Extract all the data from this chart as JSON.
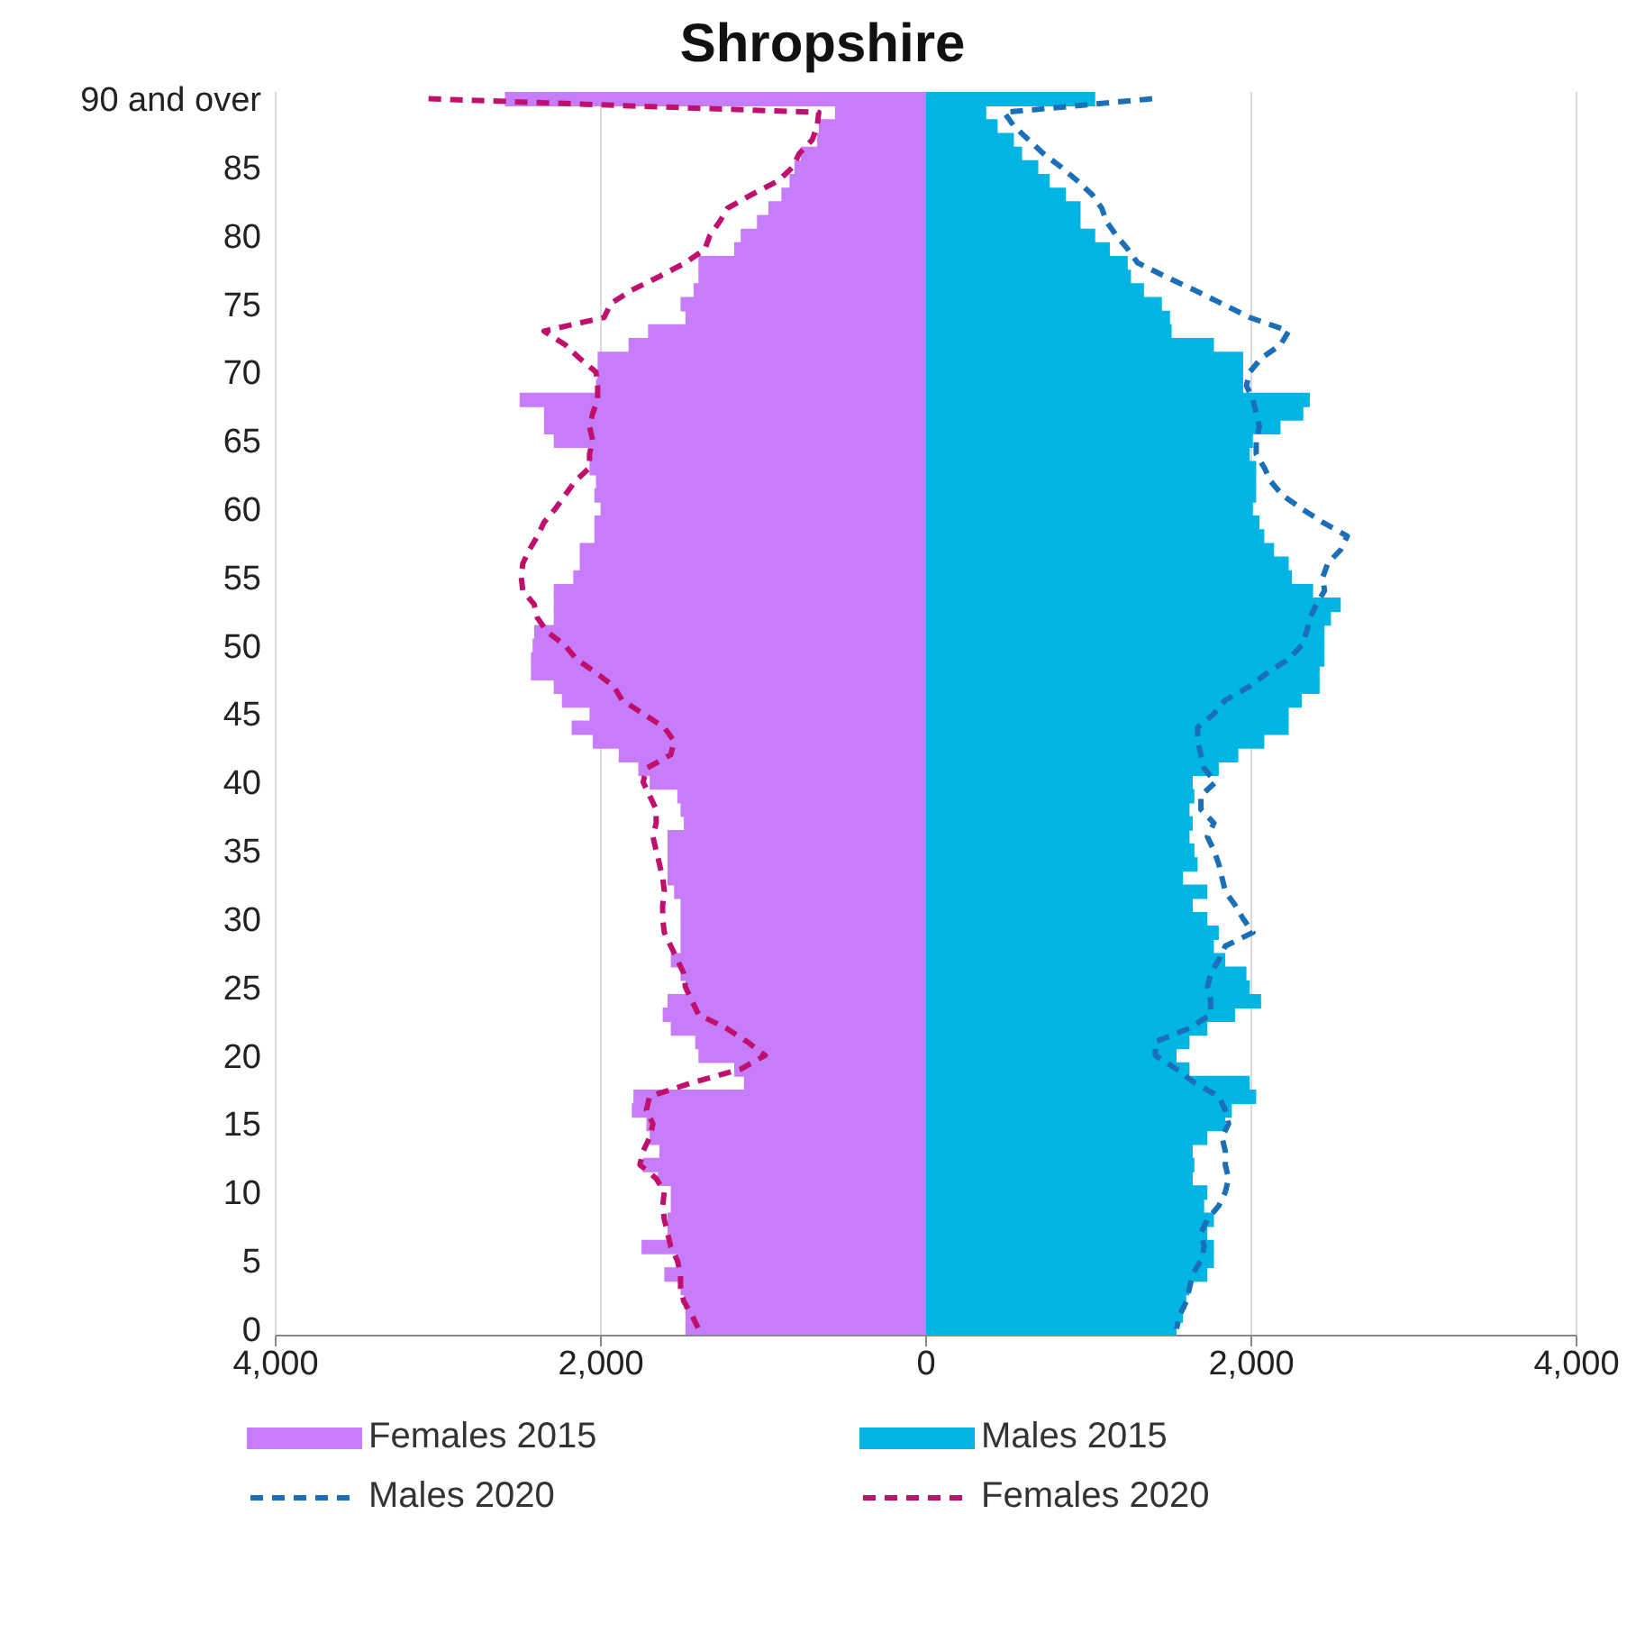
{
  "chart_data": {
    "type": "bar",
    "orientation": "horizontal",
    "stacked": true,
    "title": "Shropshire",
    "categories": [
      "90 and over",
      null,
      null,
      null,
      null,
      "85",
      null,
      null,
      null,
      null,
      "80",
      null,
      null,
      null,
      null,
      "75",
      null,
      null,
      null,
      null,
      "70",
      null,
      null,
      null,
      null,
      "65",
      null,
      null,
      null,
      null,
      "60",
      null,
      null,
      null,
      null,
      "55",
      null,
      null,
      null,
      null,
      "50",
      null,
      null,
      null,
      null,
      "45",
      null,
      null,
      null,
      null,
      "40",
      null,
      null,
      null,
      null,
      "35",
      null,
      null,
      null,
      null,
      "30",
      null,
      null,
      null,
      null,
      "25",
      null,
      null,
      null,
      null,
      "20",
      null,
      null,
      null,
      null,
      "15",
      null,
      null,
      null,
      null,
      "10",
      null,
      null,
      null,
      null,
      "5",
      null,
      null,
      null,
      null,
      "0"
    ],
    "series": [
      {
        "name": "Females 2015",
        "color": "#c77dfa",
        "values": [
          -2590,
          -560,
          -660,
          -670,
          -770,
          -810,
          -840,
          -890,
          -970,
          -1040,
          -1140,
          -1180,
          -1400,
          -1400,
          -1430,
          -1510,
          -1480,
          -1710,
          -1830,
          -2020,
          -2020,
          -2030,
          -2500,
          -2350,
          -2350,
          -2290,
          -2070,
          -2070,
          -2030,
          -2040,
          -2000,
          -2040,
          -2040,
          -2130,
          -2130,
          -2170,
          -2290,
          -2290,
          -2290,
          -2410,
          -2420,
          -2430,
          -2430,
          -2290,
          -2240,
          -2070,
          -2180,
          -2050,
          -1890,
          -1770,
          -1700,
          -1530,
          -1510,
          -1490,
          -1590,
          -1590,
          -1590,
          -1590,
          -1550,
          -1510,
          -1510,
          -1510,
          -1510,
          -1570,
          -1510,
          -1480,
          -1590,
          -1620,
          -1570,
          -1420,
          -1400,
          -1180,
          -1120,
          -1800,
          -1810,
          -1720,
          -1700,
          -1640,
          -1740,
          -1650,
          -1570,
          -1570,
          -1590,
          -1590,
          -1750,
          -1530,
          -1610,
          -1510,
          -1490,
          -1480,
          -1480
        ]
      },
      {
        "name": "Males 2015",
        "color": "#00b5e4",
        "values": [
          1040,
          370,
          440,
          540,
          590,
          690,
          760,
          860,
          950,
          950,
          1040,
          1130,
          1240,
          1260,
          1340,
          1450,
          1500,
          1510,
          1770,
          1950,
          1950,
          1950,
          2360,
          2320,
          2180,
          2010,
          1990,
          2030,
          2030,
          2030,
          2010,
          2050,
          2080,
          2140,
          2230,
          2250,
          2380,
          2550,
          2490,
          2450,
          2450,
          2450,
          2420,
          2420,
          2310,
          2230,
          2230,
          2080,
          1920,
          1800,
          1640,
          1650,
          1620,
          1640,
          1620,
          1650,
          1670,
          1580,
          1730,
          1640,
          1730,
          1800,
          1770,
          1840,
          1970,
          1990,
          2060,
          1900,
          1730,
          1620,
          1540,
          1620,
          1990,
          2030,
          1880,
          1840,
          1730,
          1640,
          1650,
          1640,
          1730,
          1710,
          1770,
          1730,
          1770,
          1770,
          1730,
          1620,
          1600,
          1580,
          1540
        ]
      },
      {
        "name": "Males 2020",
        "type": "line",
        "line_style": "dashed",
        "color": "#1b6fb8",
        "values": [
          1390,
          480,
          540,
          630,
          720,
          830,
          930,
          1020,
          1080,
          1110,
          1170,
          1240,
          1300,
          1470,
          1650,
          1820,
          1990,
          2230,
          2180,
          2060,
          1990,
          1970,
          2010,
          2030,
          2050,
          2030,
          2030,
          2080,
          2120,
          2190,
          2310,
          2440,
          2590,
          2550,
          2470,
          2440,
          2450,
          2400,
          2360,
          2340,
          2310,
          2230,
          2100,
          1990,
          1840,
          1770,
          1670,
          1670,
          1690,
          1710,
          1780,
          1690,
          1690,
          1770,
          1730,
          1770,
          1800,
          1820,
          1840,
          1900,
          1950,
          2010,
          1840,
          1800,
          1750,
          1730,
          1750,
          1750,
          1620,
          1410,
          1410,
          1540,
          1650,
          1800,
          1840,
          1860,
          1820,
          1840,
          1840,
          1860,
          1840,
          1800,
          1730,
          1690,
          1710,
          1690,
          1640,
          1620,
          1600,
          1560,
          1540
        ]
      },
      {
        "name": "Females 2020",
        "type": "line",
        "line_style": "dashed",
        "color": "#c0106e",
        "values": [
          -3060,
          -660,
          -670,
          -700,
          -780,
          -820,
          -910,
          -1070,
          -1220,
          -1270,
          -1330,
          -1360,
          -1480,
          -1640,
          -1810,
          -1940,
          -1980,
          -2350,
          -2220,
          -2130,
          -2030,
          -2020,
          -2020,
          -2050,
          -2070,
          -2050,
          -2070,
          -2070,
          -2160,
          -2220,
          -2280,
          -2350,
          -2390,
          -2440,
          -2480,
          -2490,
          -2480,
          -2410,
          -2390,
          -2330,
          -2220,
          -2150,
          -2030,
          -1920,
          -1870,
          -1740,
          -1610,
          -1550,
          -1570,
          -1720,
          -1740,
          -1700,
          -1660,
          -1660,
          -1680,
          -1660,
          -1640,
          -1620,
          -1610,
          -1620,
          -1620,
          -1610,
          -1570,
          -1530,
          -1490,
          -1480,
          -1440,
          -1400,
          -1230,
          -1100,
          -990,
          -1140,
          -1440,
          -1700,
          -1720,
          -1680,
          -1700,
          -1740,
          -1760,
          -1660,
          -1610,
          -1620,
          -1610,
          -1590,
          -1570,
          -1530,
          -1510,
          -1510,
          -1490,
          -1440,
          -1400
        ]
      }
    ],
    "xlim": [
      -4000,
      4000
    ],
    "xticks": [
      {
        "value": -4000,
        "label": "4,000"
      },
      {
        "value": -2000,
        "label": "2,000"
      },
      0,
      {
        "value": 2000,
        "label": "2,000"
      },
      {
        "value": 4000,
        "label": "4,000"
      }
    ],
    "grid": "x",
    "legend": "bottom"
  }
}
